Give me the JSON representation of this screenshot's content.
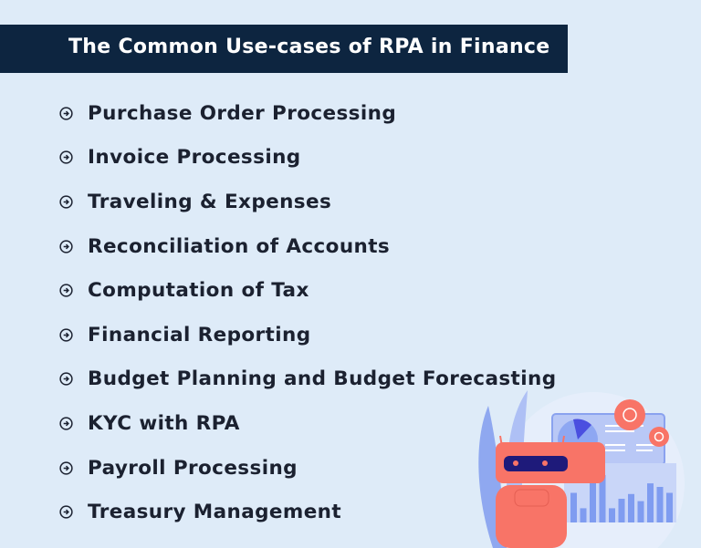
{
  "header": {
    "title": "The Common Use-cases of RPA in Finance"
  },
  "list": {
    "bullet_icon": "circle-arrow-right-icon",
    "items": [
      {
        "label": "Purchase Order Processing"
      },
      {
        "label": "Invoice Processing"
      },
      {
        "label": "Traveling & Expenses"
      },
      {
        "label": "Reconciliation of Accounts"
      },
      {
        "label": "Computation of Tax"
      },
      {
        "label": "Financial Reporting"
      },
      {
        "label": "Budget Planning and Budget Forecasting"
      },
      {
        "label": "KYC with RPA"
      },
      {
        "label": "Payroll Processing"
      },
      {
        "label": "Treasury Management"
      }
    ]
  },
  "colors": {
    "banner": "#0d2540",
    "background": "#deebf8",
    "robot": "#f87467",
    "chart": "#7f9cf0"
  }
}
